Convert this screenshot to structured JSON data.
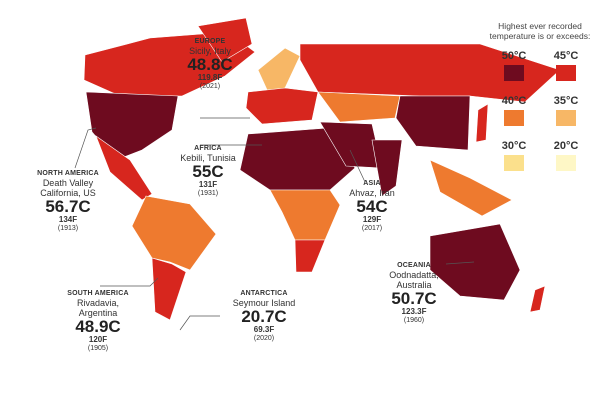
{
  "legend": {
    "title": "Highest ever recorded temperature is or exceeds:",
    "items": [
      {
        "label": "50°C",
        "color": "#6e0b1f"
      },
      {
        "label": "45°C",
        "color": "#d7261e"
      },
      {
        "label": "40°C",
        "color": "#ee7a2f"
      },
      {
        "label": "35°C",
        "color": "#f7b766"
      },
      {
        "label": "30°C",
        "color": "#fbe08c"
      },
      {
        "label": "20°C",
        "color": "#fef7c6"
      }
    ]
  },
  "annotations": [
    {
      "region": "EUROPE",
      "place": [
        "Sicily, Italy"
      ],
      "celsius": "48.8C",
      "fahrenheit": "119.8F",
      "year": "(2021)"
    },
    {
      "region": "AFRICA",
      "place": [
        "Kebili, Tunisia"
      ],
      "celsius": "55C",
      "fahrenheit": "131F",
      "year": "(1931)"
    },
    {
      "region": "NORTH AMERICA",
      "place": [
        "Death Valley",
        "California, US"
      ],
      "celsius": "56.7C",
      "fahrenheit": "134F",
      "year": "(1913)"
    },
    {
      "region": "ASIA",
      "place": [
        "Ahvaz, Iran"
      ],
      "celsius": "54C",
      "fahrenheit": "129F",
      "year": "(2017)"
    },
    {
      "region": "SOUTH AMERICA",
      "place": [
        "Rivadavia, Argentina"
      ],
      "celsius": "48.9C",
      "fahrenheit": "120F",
      "year": "(1905)"
    },
    {
      "region": "ANTARCTICA",
      "place": [
        "Seymour Island"
      ],
      "celsius": "20.7C",
      "fahrenheit": "69.3F",
      "year": "(2020)"
    },
    {
      "region": "OCEANIA",
      "place": [
        "Oodnadatta, Australia"
      ],
      "celsius": "50.7C",
      "fahrenheit": "123.3F",
      "year": "(1960)"
    }
  ]
}
